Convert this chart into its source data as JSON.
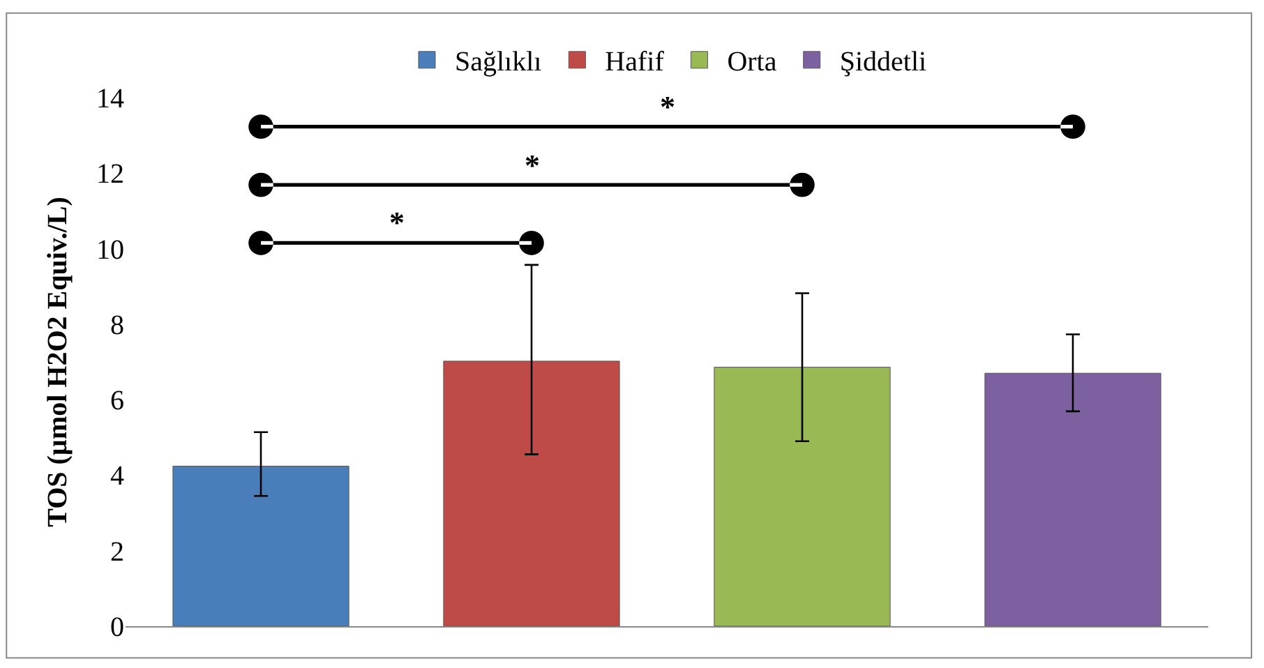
{
  "chart_data": {
    "type": "bar",
    "ylabel": "TOS (µmol H2O2 Equiv./L)",
    "categories": [
      null,
      null,
      null,
      null
    ],
    "series": [
      {
        "name": "Sağlıklı",
        "color": "#4a7ebb",
        "values": [
          4.24,
          null,
          null,
          null
        ],
        "errors": [
          [
            3.45,
            5.14
          ],
          null,
          null,
          null
        ]
      },
      {
        "name": "Hafif",
        "color": "#be4b48",
        "values": [
          null,
          7.02,
          null,
          null
        ],
        "errors": [
          null,
          [
            4.55,
            9.57
          ],
          null,
          null
        ]
      },
      {
        "name": "Orta",
        "color": "#98b954",
        "values": [
          null,
          null,
          6.86,
          null
        ],
        "errors": [
          null,
          null,
          [
            4.9,
            8.82
          ],
          null
        ]
      },
      {
        "name": "Şiddetli",
        "color": "#7d60a0",
        "values": [
          null,
          null,
          null,
          6.7
        ],
        "errors": [
          null,
          null,
          null,
          [
            5.69,
            7.73
          ]
        ]
      }
    ],
    "ylim": [
      0,
      14
    ],
    "yticks": [
      0,
      2,
      4,
      6,
      8,
      10,
      12,
      14
    ],
    "annotations": [
      "*",
      "*",
      "*"
    ],
    "legend": "top"
  }
}
